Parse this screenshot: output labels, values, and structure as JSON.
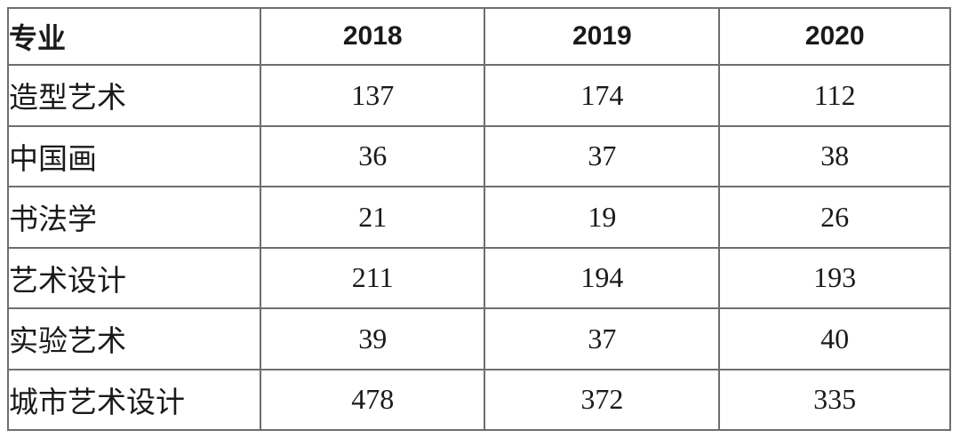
{
  "table": {
    "headers": [
      "专业",
      "2018",
      "2019",
      "2020"
    ],
    "rows": [
      {
        "major": "造型艺术",
        "values": [
          "137",
          "174",
          "112"
        ]
      },
      {
        "major": "中国画",
        "values": [
          "36",
          "37",
          "38"
        ]
      },
      {
        "major": "书法学",
        "values": [
          "21",
          "19",
          "26"
        ]
      },
      {
        "major": "艺术设计",
        "values": [
          "211",
          "194",
          "193"
        ]
      },
      {
        "major": "实验艺术",
        "values": [
          "39",
          "37",
          "40"
        ]
      },
      {
        "major": "城市艺术设计",
        "values": [
          "478",
          "372",
          "335"
        ]
      }
    ]
  },
  "colors": {
    "grid_line": "#6e6e6e",
    "background": "#ffffff",
    "text": "#1c1c1c"
  },
  "chart_data": {
    "type": "table",
    "title": "",
    "categories": [
      "造型艺术",
      "中国画",
      "书法学",
      "艺术设计",
      "实验艺术",
      "城市艺术设计"
    ],
    "series": [
      {
        "name": "2018",
        "values": [
          137,
          36,
          21,
          211,
          39,
          478
        ]
      },
      {
        "name": "2019",
        "values": [
          174,
          37,
          19,
          194,
          37,
          372
        ]
      },
      {
        "name": "2020",
        "values": [
          112,
          38,
          26,
          193,
          40,
          335
        ]
      }
    ]
  }
}
